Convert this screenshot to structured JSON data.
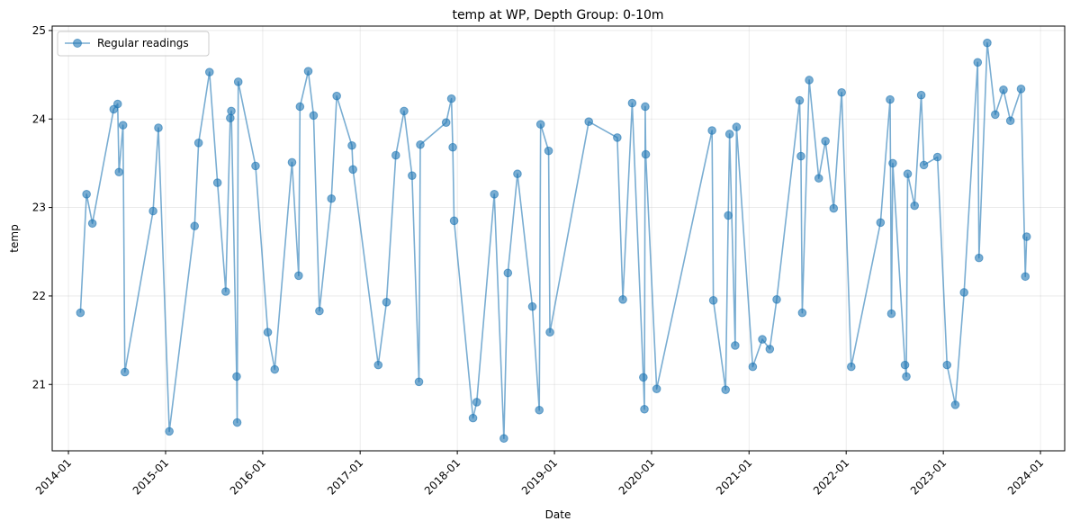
{
  "chart_data": {
    "type": "line",
    "title": "temp at WP, Depth Group: 0-10m",
    "xlabel": "Date",
    "ylabel": "temp",
    "x_ticks": [
      "2014-01",
      "2015-01",
      "2016-01",
      "2017-01",
      "2018-01",
      "2019-01",
      "2020-01",
      "2021-01",
      "2022-01",
      "2023-01",
      "2024-01"
    ],
    "y_ticks": [
      "21",
      "22",
      "23",
      "24",
      "25"
    ],
    "xlim": [
      "2013-11-01",
      "2024-04-01"
    ],
    "ylim": [
      20.25,
      25.05
    ],
    "grid": true,
    "legend_position": "top-left",
    "colors": {
      "series": "#1f77b4"
    },
    "series": [
      {
        "name": "Regular readings",
        "marker": "circle",
        "x": [
          "2014-02-15",
          "2014-03-10",
          "2014-04-01",
          "2014-06-20",
          "2014-07-05",
          "2014-07-10",
          "2014-07-25",
          "2014-08-01",
          "2014-11-15",
          "2014-12-05",
          "2015-01-15",
          "2015-04-20",
          "2015-05-05",
          "2015-06-15",
          "2015-07-15",
          "2015-08-15",
          "2015-09-01",
          "2015-09-05",
          "2015-09-25",
          "2015-09-27",
          "2015-10-01",
          "2015-12-05",
          "2016-01-20",
          "2016-02-15",
          "2016-04-20",
          "2016-05-15",
          "2016-05-20",
          "2016-06-20",
          "2016-07-10",
          "2016-08-01",
          "2016-09-15",
          "2016-10-05",
          "2016-12-01",
          "2016-12-05",
          "2017-03-10",
          "2017-04-10",
          "2017-05-15",
          "2017-06-15",
          "2017-07-15",
          "2017-08-10",
          "2017-08-15",
          "2017-11-20",
          "2017-12-10",
          "2017-12-15",
          "2017-12-20",
          "2018-03-01",
          "2018-03-15",
          "2018-05-20",
          "2018-06-25",
          "2018-07-10",
          "2018-08-15",
          "2018-10-10",
          "2018-11-05",
          "2018-11-10",
          "2018-12-10",
          "2018-12-15",
          "2019-05-10",
          "2019-08-25",
          "2019-09-15",
          "2019-10-20",
          "2019-12-01",
          "2019-12-05",
          "2019-12-08",
          "2019-12-10",
          "2020-01-20",
          "2020-08-15",
          "2020-08-20",
          "2020-10-05",
          "2020-10-15",
          "2020-10-20",
          "2020-11-10",
          "2020-11-15",
          "2021-01-15",
          "2021-02-20",
          "2021-03-20",
          "2021-04-15",
          "2021-07-10",
          "2021-07-15",
          "2021-07-20",
          "2021-08-15",
          "2021-09-20",
          "2021-10-15",
          "2021-11-15",
          "2021-12-15",
          "2022-01-20",
          "2022-05-10",
          "2022-06-15",
          "2022-06-20",
          "2022-06-25",
          "2022-08-10",
          "2022-08-15",
          "2022-08-20",
          "2022-09-15",
          "2022-10-10",
          "2022-10-20",
          "2022-12-10",
          "2023-01-15",
          "2023-02-15",
          "2023-03-20",
          "2023-05-10",
          "2023-05-15",
          "2023-06-15",
          "2023-07-15",
          "2023-08-15",
          "2023-09-10",
          "2023-10-20",
          "2023-11-05",
          "2023-11-10"
        ],
        "values": [
          21.81,
          23.15,
          22.82,
          24.11,
          24.17,
          23.4,
          23.93,
          21.14,
          22.96,
          23.9,
          20.47,
          22.79,
          23.73,
          24.53,
          23.28,
          22.05,
          24.01,
          24.09,
          21.09,
          20.57,
          24.42,
          23.47,
          21.59,
          21.17,
          23.51,
          22.23,
          24.14,
          24.54,
          24.04,
          21.83,
          23.1,
          24.26,
          23.7,
          23.43,
          21.22,
          21.93,
          23.59,
          24.09,
          23.36,
          21.03,
          23.71,
          23.96,
          24.23,
          23.68,
          22.85,
          20.62,
          20.8,
          23.15,
          20.39,
          22.26,
          23.38,
          21.88,
          20.71,
          23.94,
          23.64,
          21.59,
          23.97,
          23.79,
          21.96,
          24.18,
          21.08,
          20.72,
          24.14,
          23.6,
          20.95,
          23.87,
          21.95,
          20.94,
          22.91,
          23.83,
          21.44,
          23.91,
          21.2,
          21.51,
          21.4,
          21.96,
          24.21,
          23.58,
          21.81,
          24.44,
          23.33,
          23.75,
          22.99,
          24.3,
          21.2,
          22.83,
          24.22,
          21.8,
          23.5,
          21.22,
          21.09,
          23.38,
          23.02,
          24.27,
          23.48,
          23.57,
          21.22,
          20.77,
          22.04,
          24.64,
          22.43,
          24.86,
          24.05,
          24.33,
          23.98,
          24.34,
          22.22,
          22.67
        ]
      }
    ]
  }
}
